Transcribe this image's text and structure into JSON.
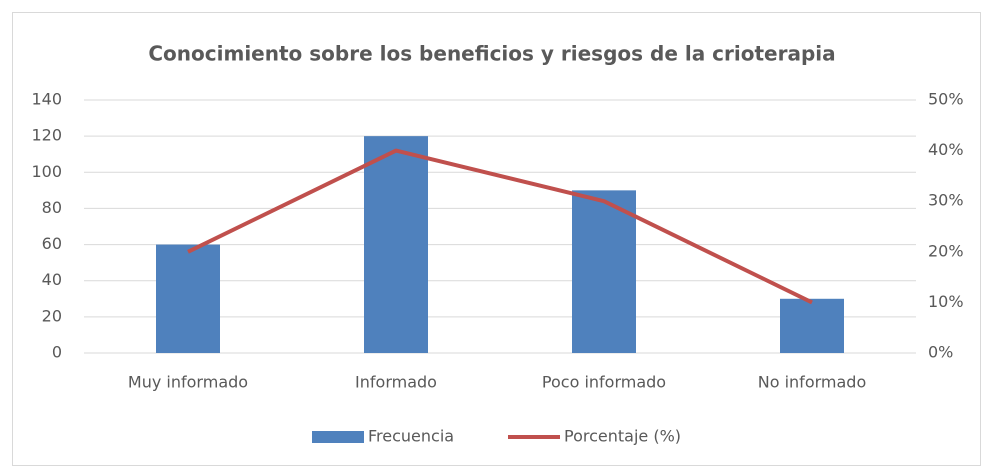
{
  "chart_data": {
    "type": "bar_line",
    "title": "Conocimiento sobre los beneficios y riesgos de la crioterapia",
    "categories": [
      "Muy informado",
      "Informado",
      "Poco informado",
      "No informado"
    ],
    "series": [
      {
        "name": "Frecuencia",
        "type": "bar",
        "color": "#4f81bd",
        "values": [
          60,
          120,
          90,
          30
        ]
      },
      {
        "name": "Porcentaje (%)",
        "type": "line",
        "axis": "y2",
        "color": "#c0504d",
        "values": [
          20,
          40,
          30,
          10
        ]
      }
    ],
    "ylim": [
      0,
      140
    ],
    "yticks": [
      0,
      20,
      40,
      60,
      80,
      100,
      120,
      140
    ],
    "y2lim": [
      0,
      50
    ],
    "y2ticks": [
      {
        "value": 0,
        "label": "0%"
      },
      {
        "value": 10,
        "label": "10%"
      },
      {
        "value": 20,
        "label": "20%"
      },
      {
        "value": 30,
        "label": "30%"
      },
      {
        "value": 40,
        "label": "40%"
      },
      {
        "value": 50,
        "label": "50%"
      }
    ],
    "grid": true,
    "legend": "bottom"
  }
}
